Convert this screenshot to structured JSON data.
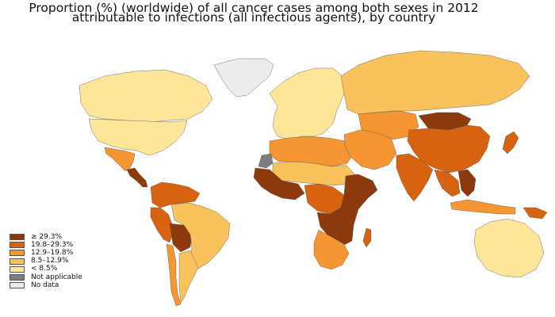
{
  "title_line1": "Proportion (%) (worldwide) of all cancer cases among both sexes in 2012",
  "title_line2": "attributable to infections (all infectious agents), by country",
  "legend": [
    {
      "label": "≥ 29.3%",
      "color": "#8c3a0b"
    },
    {
      "label": "19.8–29.3%",
      "color": "#d7620f"
    },
    {
      "label": "12.9–19.8%",
      "color": "#f59632"
    },
    {
      "label": "8.5–12.9%",
      "color": "#f9c25c"
    },
    {
      "label": "< 8.5%",
      "color": "#fde699"
    },
    {
      "label": "Not applicable",
      "color": "#7d7d7d"
    },
    {
      "label": "No data",
      "color": "#ececec"
    }
  ],
  "regions": [
    {
      "name": "greenland",
      "category": "No data"
    },
    {
      "name": "canada",
      "category": "< 8.5%"
    },
    {
      "name": "united-states",
      "category": "< 8.5%"
    },
    {
      "name": "mexico",
      "category": "12.9–19.8%"
    },
    {
      "name": "central-america",
      "category": "≥ 29.3%"
    },
    {
      "name": "colombia-venezuela",
      "category": "19.8–29.3%"
    },
    {
      "name": "peru",
      "category": "19.8–29.3%"
    },
    {
      "name": "bolivia",
      "category": "≥ 29.3%"
    },
    {
      "name": "brazil",
      "category": "8.5–12.9%"
    },
    {
      "name": "argentina",
      "category": "8.5–12.9%"
    },
    {
      "name": "chile",
      "category": "12.9–19.8%"
    },
    {
      "name": "europe",
      "category": "< 8.5%"
    },
    {
      "name": "russia",
      "category": "8.5–12.9%"
    },
    {
      "name": "north-africa",
      "category": "12.9–19.8%"
    },
    {
      "name": "sahel",
      "category": "8.5–12.9%"
    },
    {
      "name": "west-africa",
      "category": "≥ 29.3%"
    },
    {
      "name": "central-africa",
      "category": "19.8–29.3%"
    },
    {
      "name": "east-africa",
      "category": "≥ 29.3%"
    },
    {
      "name": "southern-africa",
      "category": "12.9–19.8%"
    },
    {
      "name": "middle-east",
      "category": "12.9–19.8%"
    },
    {
      "name": "central-asia",
      "category": "12.9–19.8%"
    },
    {
      "name": "mongolia",
      "category": "≥ 29.3%"
    },
    {
      "name": "china",
      "category": "19.8–29.3%"
    },
    {
      "name": "india",
      "category": "19.8–29.3%"
    },
    {
      "name": "southeast-asia",
      "category": "19.8–29.3%"
    },
    {
      "name": "indochina",
      "category": "≥ 29.3%"
    },
    {
      "name": "japan",
      "category": "19.8–29.3%"
    },
    {
      "name": "indonesia",
      "category": "12.9–19.8%"
    },
    {
      "name": "papua-new-guinea",
      "category": "19.8–29.3%"
    },
    {
      "name": "australia",
      "category": "< 8.5%"
    },
    {
      "name": "madagascar",
      "category": "19.8–29.3%"
    },
    {
      "name": "western-sahara",
      "category": "Not applicable"
    }
  ]
}
